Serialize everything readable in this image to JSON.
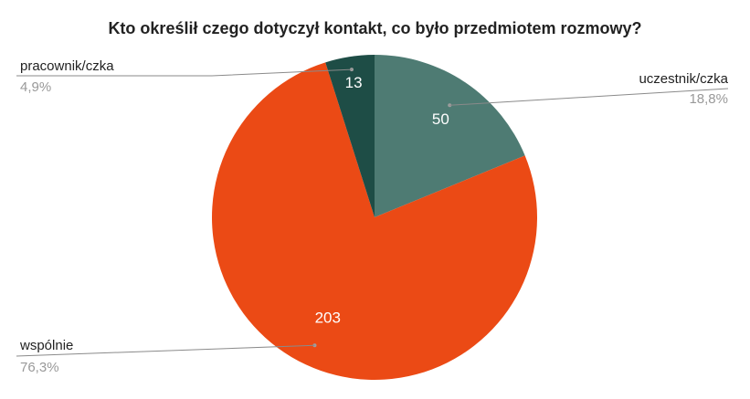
{
  "chart_data": {
    "type": "pie",
    "title": "Kto określił czego dotyczył kontakt, co było przedmiotem rozmowy?",
    "slices": [
      {
        "label": "uczestnik/czka",
        "value": 50,
        "value_label": "50",
        "percent_label": "18,8%",
        "color": "#4e7b73"
      },
      {
        "label": "wspólnie",
        "value": 203,
        "value_label": "203",
        "percent_label": "76,3%",
        "color": "#eb4a15"
      },
      {
        "label": "pracownik/czka",
        "value": 13,
        "value_label": "13",
        "percent_label": "4,9%",
        "color": "#1e4d46"
      }
    ],
    "legend": "callouts"
  }
}
